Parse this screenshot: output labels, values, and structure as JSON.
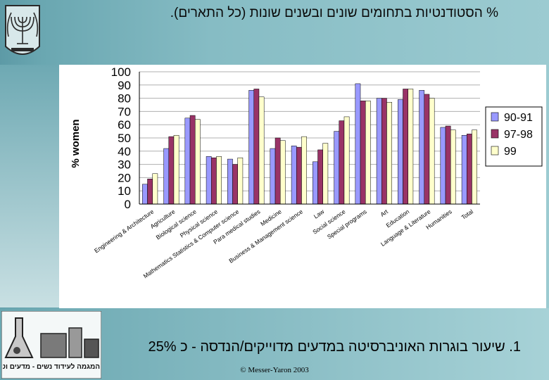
{
  "slide": {
    "title": "% הסטודנטיות בתחומים שונים ובשנים שונות (כל התארים).",
    "bullet": "1. שיעור בוגרות האוניברסיטה במדעים מדוייקים/הנדסה - כ 25%",
    "copyright": "© Messer-Yaron 2003",
    "logo_text": "המגמה לעידוד נשים - מדעים וטכנולוגיה",
    "colors": {
      "series1": "#9999ff",
      "series2": "#993366",
      "series3": "#ffffcc",
      "background": "#86bcc4"
    }
  },
  "chart_data": {
    "type": "bar",
    "title": "",
    "xlabel": "",
    "ylabel": "% women",
    "ylim": [
      0,
      100
    ],
    "yticks": [
      0,
      10,
      20,
      30,
      40,
      50,
      60,
      70,
      80,
      90,
      100
    ],
    "grid": true,
    "legend_position": "right",
    "categories": [
      "Engineering & Architecture",
      "Agriculture",
      "Biological science",
      "Physical science",
      "Mathematics Statistics & Computer science",
      "Para medical studies",
      "Medicine",
      "Business & Management science",
      "Law",
      "Social science",
      "Special programs",
      "Art",
      "Education",
      "Language & Literature",
      "Humanities",
      "Total"
    ],
    "series": [
      {
        "name": "90-91",
        "values": [
          15,
          42,
          65,
          36,
          34,
          86,
          42,
          44,
          32,
          55,
          91,
          80,
          79,
          86,
          58,
          52
        ]
      },
      {
        "name": "97-98",
        "values": [
          19,
          51,
          67,
          35,
          30,
          87,
          50,
          43,
          41,
          63,
          78,
          80,
          87,
          83,
          59,
          53
        ]
      },
      {
        "name": "99",
        "values": [
          23,
          52,
          64,
          36,
          35,
          81,
          48,
          51,
          46,
          66,
          78,
          77,
          87,
          80,
          56,
          56
        ]
      }
    ]
  }
}
